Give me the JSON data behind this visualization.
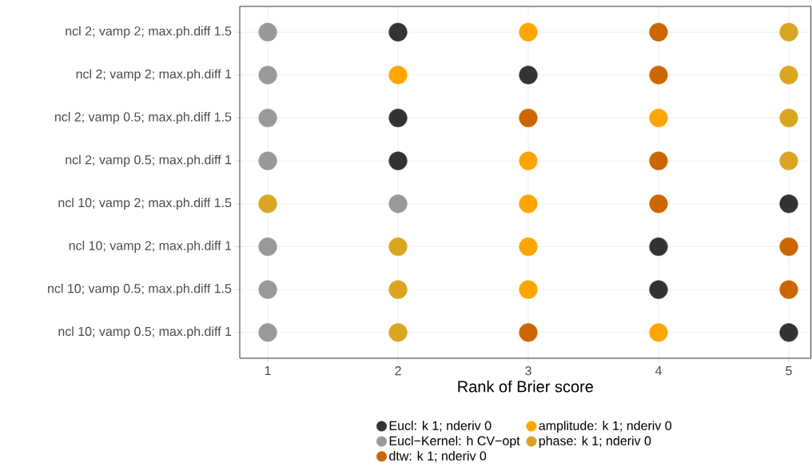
{
  "chart_data": {
    "type": "scatter",
    "orientation": "horizontal",
    "xlabel": "Rank of Brier score",
    "categories": [
      "ncl 2; vamp 2; max.ph.diff 1.5",
      "ncl 2; vamp 2; max.ph.diff 1",
      "ncl 2; vamp 0.5; max.ph.diff 1.5",
      "ncl 2; vamp 0.5; max.ph.diff 1",
      "ncl 10; vamp 2; max.ph.diff 1.5",
      "ncl 10; vamp 2; max.ph.diff 1",
      "ncl 10; vamp 0.5; max.ph.diff 1.5",
      "ncl 10; vamp 0.5; max.ph.diff 1"
    ],
    "series": [
      {
        "name": "Eucl: k 1; nderiv 0",
        "color": "#333333",
        "values": [
          2,
          3,
          2,
          2,
          5,
          4,
          4,
          5
        ]
      },
      {
        "name": "Eucl−Kernel: h CV−opt",
        "color": "#999999",
        "values": [
          1,
          1,
          1,
          1,
          2,
          1,
          1,
          1
        ]
      },
      {
        "name": "dtw: k 1; nderiv 0",
        "color": "#cc6600",
        "values": [
          4,
          4,
          3,
          4,
          4,
          5,
          5,
          3
        ]
      },
      {
        "name": "amplitude: k 1; nderiv 0",
        "color": "#ffa500",
        "values": [
          3,
          2,
          4,
          3,
          3,
          3,
          3,
          4
        ]
      },
      {
        "name": "phase: k 1; nderiv 0",
        "color": "#daa520",
        "values": [
          5,
          5,
          5,
          5,
          1,
          2,
          2,
          2
        ]
      }
    ],
    "xlim": [
      0.785,
      5.17
    ],
    "xticks": [
      1,
      2,
      3,
      4,
      5
    ],
    "grid": true,
    "legend": "bottom"
  }
}
